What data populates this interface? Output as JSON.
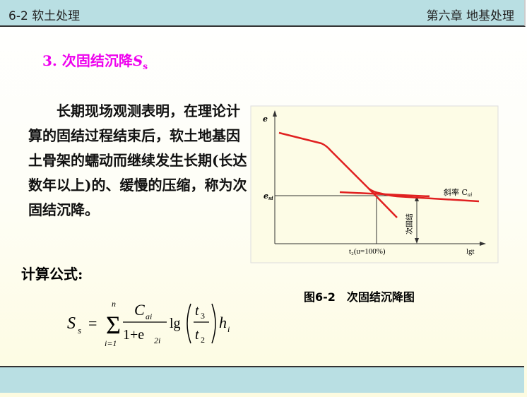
{
  "header": {
    "left": "6-2 软土处理",
    "right": "第六章 地基处理"
  },
  "title": {
    "text": "3. 次固结沉降",
    "symbol": "S",
    "subscript": "s"
  },
  "paragraph": "长期现场观测表明，在理论计算的固结过程结束后，软土地基因土骨架的蠕动而继续发生长期(长达数年以上)的、缓慢的压缩，称为次固结沉降。",
  "formula_label": "计算公式:",
  "formula": {
    "lhs": "S",
    "lhs_sub": "s",
    "sum_top": "n",
    "sum_bottom": "i=1",
    "num": "C",
    "num_sub": "ai",
    "den": "1+e",
    "den_sub": "2i",
    "log": "lg",
    "t_num": "t",
    "t_num_sub": "3",
    "t_den": "t",
    "t_den_sub": "2",
    "h": "h",
    "h_sub": "i"
  },
  "figure": {
    "y_axis": "e",
    "x_axis": "lgt",
    "e_label": "e",
    "e_label_sub": "si",
    "t_label": "t₂(u=100%)",
    "slope_label": "斜率 C",
    "slope_sub": "ai",
    "arrow_label": "次固结",
    "line_color": "#e02020"
  },
  "caption": "图6-2　次固结沉降图"
}
